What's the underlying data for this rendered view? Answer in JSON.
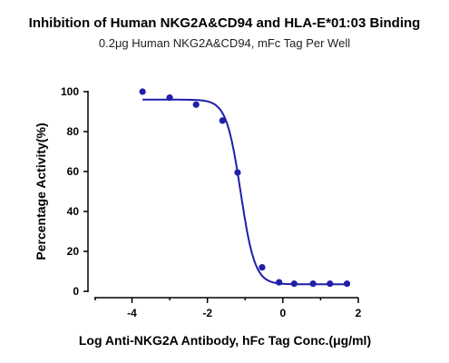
{
  "chart_data": {
    "type": "scatter",
    "title": "Inhibition of Human NKG2A&CD94 and HLA-E*01:03 Binding",
    "subtitle": "0.2μg Human NKG2A&CD94, mFc Tag Per Well",
    "xlabel": "Log Anti-NKG2A Antibody, hFc Tag Conc.(μg/ml)",
    "ylabel": "Percentage Activity(%)",
    "xlim": [
      -5,
      2
    ],
    "ylim": [
      0,
      100
    ],
    "x_ticks": [
      -4,
      -2,
      0,
      2
    ],
    "y_ticks": [
      0,
      20,
      40,
      60,
      80,
      100
    ],
    "grid": false,
    "legend": "none",
    "series": [
      {
        "color": "#1f1fa8",
        "x": [
          -3.72,
          -3.0,
          -2.3,
          -1.6,
          -1.2,
          -0.55,
          -0.1,
          0.3,
          0.8,
          1.25,
          1.7
        ],
        "y": [
          100,
          97,
          93.5,
          85.5,
          59.5,
          12,
          4.5,
          3.8,
          3.8,
          3.8,
          3.8
        ]
      }
    ],
    "fit_curve": {
      "model": "4PL",
      "top": 96,
      "bottom": 3.5,
      "log_ic50": -1.12,
      "hill_slope": -2.3,
      "color": "#1f1fa8"
    }
  }
}
